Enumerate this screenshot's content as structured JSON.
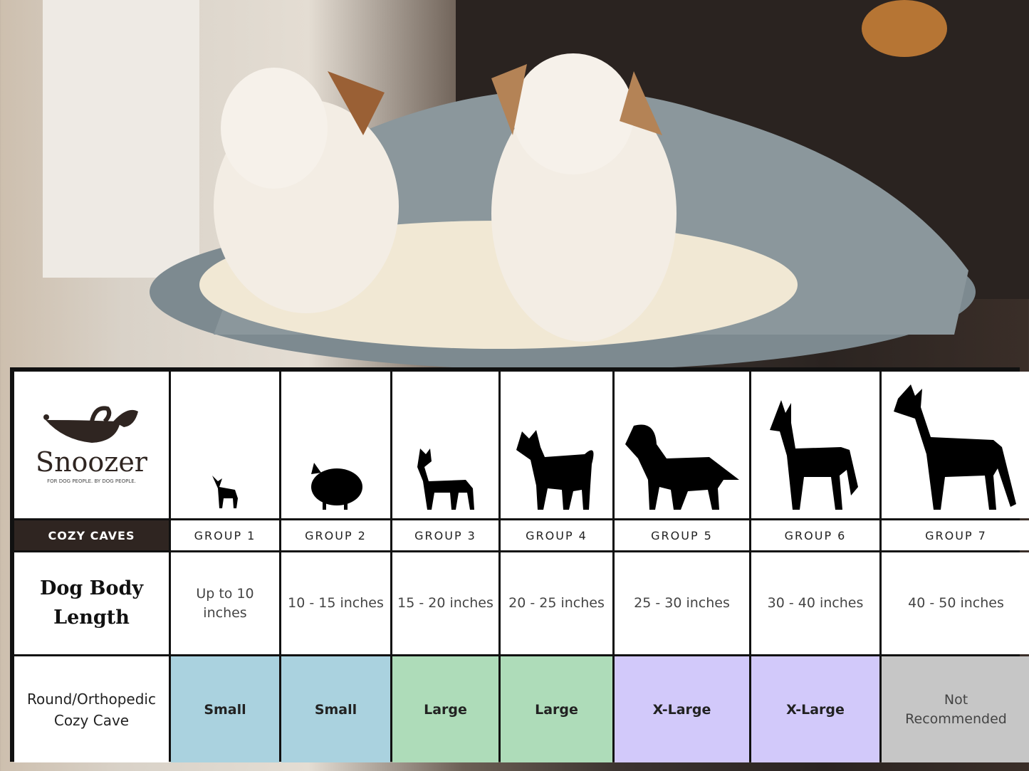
{
  "brand": {
    "name": "Snoozer",
    "tagline": "FOR DOG PEOPLE. BY DOG PEOPLE.",
    "color": "#2f2521"
  },
  "product_line": "COZY CAVES",
  "groups": [
    "GROUP 1",
    "GROUP 2",
    "GROUP 3",
    "GROUP 4",
    "GROUP 5",
    "GROUP 6",
    "GROUP 7"
  ],
  "row_labels": {
    "length": "Dog Body Length",
    "bed": "Round/Orthopedic Cozy Cave"
  },
  "lengths": [
    "Up to 10 inches",
    "10 - 15 inches",
    "15 - 20 inches",
    "20 - 25 inches",
    "25 - 30 inches",
    "30 - 40 inches",
    "40 - 50 inches"
  ],
  "sizes": [
    "Small",
    "Small",
    "Large",
    "Large",
    "X-Large",
    "X-Large",
    "Not Recommended"
  ],
  "size_colors": [
    "#aad2df",
    "#aad2df",
    "#aedcb9",
    "#aedcb9",
    "#d2c9fa",
    "#d2c9fa",
    "#c6c6c6"
  ],
  "dog_icons": [
    "chihuahua-icon",
    "pomeranian-icon",
    "boston-terrier-icon",
    "shiba-icon",
    "golden-retriever-icon",
    "doberman-icon",
    "great-dane-icon"
  ]
}
